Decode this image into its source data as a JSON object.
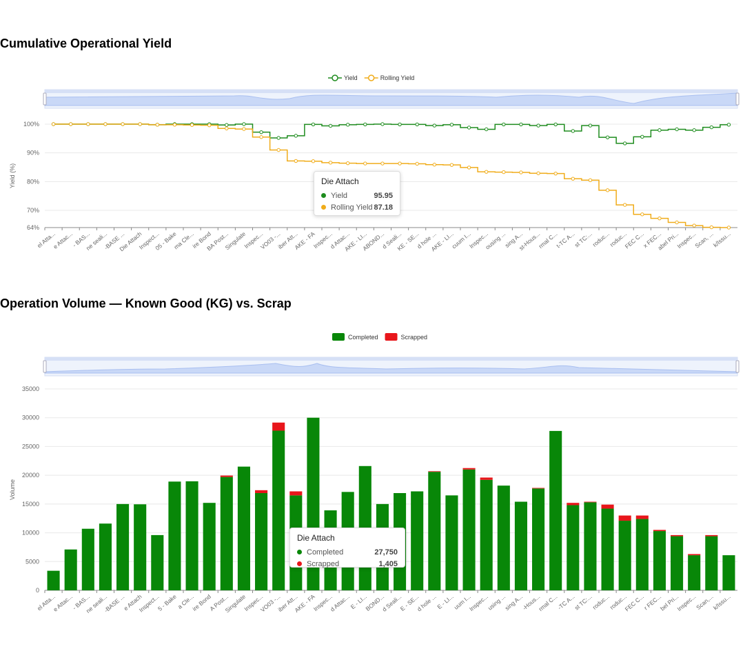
{
  "chart_data": [
    {
      "type": "line",
      "step": true,
      "title": "Cumulative Operational Yield",
      "y_label": "Yield (%)",
      "categories": [
        "el Atta...",
        "e Attac...",
        "- BAS...",
        "ne seali...",
        "-BASE ...",
        "Die Attach",
        "Inspect...",
        "05 - Bake",
        "ma Cle...",
        "ire Bond",
        "BA Post...",
        "Singulate",
        "Inspec...",
        "VO03 -...",
        "iber Att...",
        "AKE - FA",
        "Inspec...",
        "d Attac...",
        "AKE - LI...",
        "ABOND...",
        "d Seali...",
        "KE - SE...",
        "d hole ...",
        "AKE - LI...",
        "cuum I...",
        "Inspec...",
        "ousing ...",
        "sing A...",
        "st-Hous...",
        "rmal C...",
        "t-TC A...",
        "st TC:...",
        "roduc...",
        "roduc...",
        "FEC C...",
        "x FEC...",
        "abel Pri...",
        "Inspec...",
        "Scan, ...",
        "k/Issu..."
      ],
      "series": [
        {
          "name": "Yield",
          "color": "#1e8c1e",
          "values": [
            100,
            100,
            100,
            100,
            100,
            100,
            99.8,
            100,
            100,
            100,
            99.7,
            100,
            97.2,
            95.2,
            95.95,
            99.9,
            99.4,
            99.8,
            99.9,
            100,
            99.9,
            99.9,
            99.5,
            99.8,
            98.8,
            98.2,
            99.9,
            99.9,
            99.5,
            99.9,
            97.6,
            99.5,
            95.4,
            93.3,
            95.6,
            97.9,
            98.2,
            97.9,
            98.9,
            99.8
          ]
        },
        {
          "name": "Rolling Yield",
          "color": "#f0ac1a",
          "values": [
            100,
            100,
            100,
            100,
            100,
            100,
            99.8,
            99.8,
            99.7,
            99.6,
            98.5,
            98.3,
            95.5,
            91.0,
            87.18,
            87.1,
            86.6,
            86.4,
            86.3,
            86.3,
            86.3,
            86.2,
            85.9,
            85.8,
            84.9,
            83.4,
            83.3,
            83.2,
            82.9,
            82.8,
            81.0,
            80.5,
            77.0,
            71.9,
            68.6,
            67.2,
            65.8,
            64.7,
            64.1,
            64.0
          ]
        }
      ],
      "ylim": [
        64,
        100
      ],
      "yticks": [
        {
          "value": 64,
          "label": "64%"
        },
        {
          "value": 70,
          "label": "70%"
        },
        {
          "value": 80,
          "label": "80%"
        },
        {
          "value": 90,
          "label": "90%"
        },
        {
          "value": 100,
          "label": "100%"
        }
      ],
      "grid": true,
      "legend": "top",
      "tooltip": {
        "title": "Die Attach",
        "rows": [
          {
            "name": "Yield",
            "value": "95.95"
          },
          {
            "name": "Rolling Yield",
            "value": "87.18"
          }
        ]
      }
    },
    {
      "type": "bar",
      "stacked": true,
      "title": "Operation Volume — Known Good (KG) vs. Scrap",
      "y_label": "Volume",
      "categories": [
        "el Atta...",
        "e Attac...",
        "- BAS...",
        "ne seali...",
        "-BASE ...",
        "e Attach",
        "Inspect...",
        "5 - Bake",
        "a Cle...",
        "ire Bond",
        "A Post...",
        "Singulate",
        "Inspec...",
        "VO03 -...",
        "iber Att...",
        "AKE - FA",
        "Inspec...",
        "d Attac...",
        "E - LI...",
        "BOND...",
        "d Seali...",
        "E - SE...",
        "d hole ...",
        "E - LI...",
        "uum I...",
        "Inspec...",
        "using ...",
        "sing A...",
        "-Hous...",
        "rmal C...",
        "-TC A...",
        "st TC:...",
        "roduc...",
        "roduc...",
        "FEC C...",
        "r FEC...",
        "bel Pri...",
        "Inspec...",
        "Scan,...",
        "k/Issu..."
      ],
      "series": [
        {
          "name": "Completed",
          "color": "#088708",
          "values": [
            3400,
            7100,
            10700,
            11600,
            15000,
            14950,
            9600,
            18900,
            18950,
            15200,
            19700,
            21500,
            16900,
            27750,
            16500,
            30000,
            13900,
            17100,
            21600,
            15000,
            16900,
            17200,
            20600,
            16500,
            21000,
            19200,
            18200,
            15400,
            17700,
            27700,
            14800,
            15300,
            14200,
            12100,
            12400,
            10300,
            9400,
            6100,
            9400,
            6100
          ]
        },
        {
          "name": "Scrapped",
          "color": "#e8161b",
          "values": [
            0,
            0,
            0,
            0,
            0,
            0,
            0,
            0,
            0,
            0,
            250,
            0,
            500,
            1405,
            700,
            0,
            0,
            0,
            0,
            0,
            0,
            0,
            100,
            0,
            250,
            400,
            0,
            0,
            100,
            0,
            400,
            100,
            700,
            900,
            600,
            200,
            200,
            200,
            200,
            0
          ]
        }
      ],
      "ylim": [
        0,
        35000
      ],
      "yticks": [
        0,
        5000,
        10000,
        15000,
        20000,
        25000,
        30000,
        35000
      ],
      "grid": true,
      "legend": "top",
      "tooltip": {
        "title": "Die Attach",
        "rows": [
          {
            "name": "Completed",
            "value": "27,750"
          },
          {
            "name": "Scrapped",
            "value": "1,405"
          }
        ]
      }
    }
  ]
}
